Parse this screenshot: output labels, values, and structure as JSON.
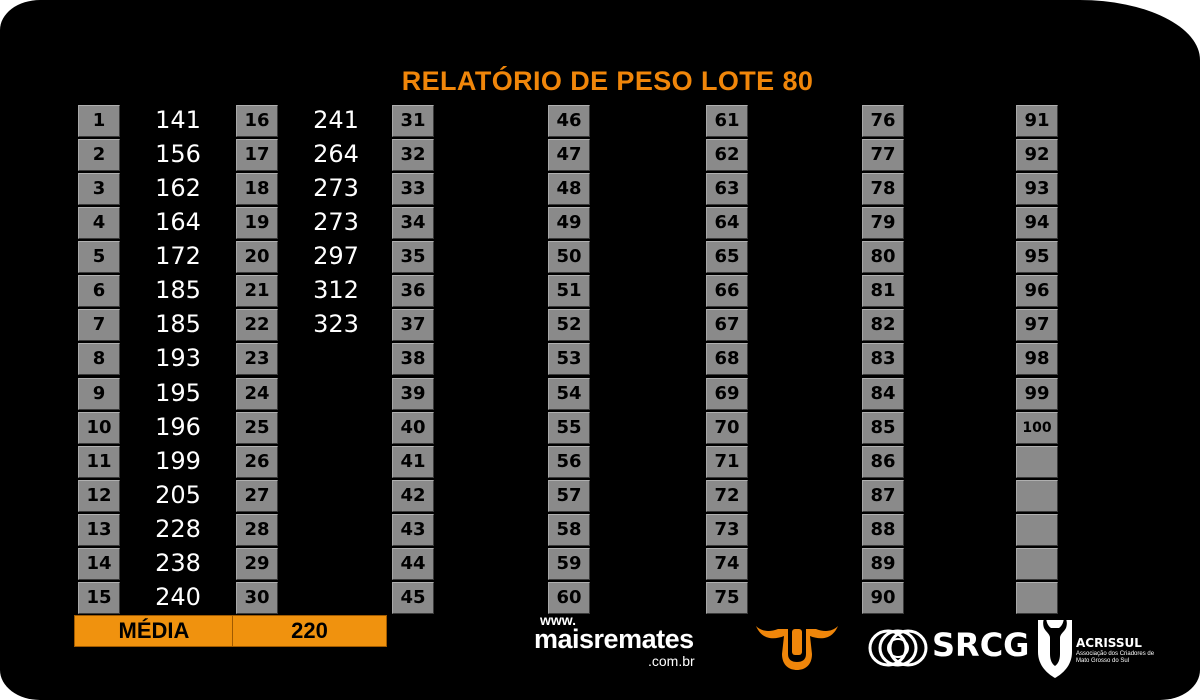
{
  "title": "RELATÓRIO DE PESO LOTE 80",
  "entries": [
    {
      "n": "1",
      "w": "141"
    },
    {
      "n": "2",
      "w": "156"
    },
    {
      "n": "3",
      "w": "162"
    },
    {
      "n": "4",
      "w": "164"
    },
    {
      "n": "5",
      "w": "172"
    },
    {
      "n": "6",
      "w": "185"
    },
    {
      "n": "7",
      "w": "185"
    },
    {
      "n": "8",
      "w": "193"
    },
    {
      "n": "9",
      "w": "195"
    },
    {
      "n": "10",
      "w": "196"
    },
    {
      "n": "11",
      "w": "199"
    },
    {
      "n": "12",
      "w": "205"
    },
    {
      "n": "13",
      "w": "228"
    },
    {
      "n": "14",
      "w": "238"
    },
    {
      "n": "15",
      "w": "240"
    },
    {
      "n": "16",
      "w": "241"
    },
    {
      "n": "17",
      "w": "264"
    },
    {
      "n": "18",
      "w": "273"
    },
    {
      "n": "19",
      "w": "273"
    },
    {
      "n": "20",
      "w": "297"
    },
    {
      "n": "21",
      "w": "312"
    },
    {
      "n": "22",
      "w": "323"
    },
    {
      "n": "23",
      "w": ""
    },
    {
      "n": "24",
      "w": ""
    },
    {
      "n": "25",
      "w": ""
    },
    {
      "n": "26",
      "w": ""
    },
    {
      "n": "27",
      "w": ""
    },
    {
      "n": "28",
      "w": ""
    },
    {
      "n": "29",
      "w": ""
    },
    {
      "n": "30",
      "w": ""
    },
    {
      "n": "31",
      "w": ""
    },
    {
      "n": "32",
      "w": ""
    },
    {
      "n": "33",
      "w": ""
    },
    {
      "n": "34",
      "w": ""
    },
    {
      "n": "35",
      "w": ""
    },
    {
      "n": "36",
      "w": ""
    },
    {
      "n": "37",
      "w": ""
    },
    {
      "n": "38",
      "w": ""
    },
    {
      "n": "39",
      "w": ""
    },
    {
      "n": "40",
      "w": ""
    },
    {
      "n": "41",
      "w": ""
    },
    {
      "n": "42",
      "w": ""
    },
    {
      "n": "43",
      "w": ""
    },
    {
      "n": "44",
      "w": ""
    },
    {
      "n": "45",
      "w": ""
    },
    {
      "n": "46",
      "w": ""
    },
    {
      "n": "47",
      "w": ""
    },
    {
      "n": "48",
      "w": ""
    },
    {
      "n": "49",
      "w": ""
    },
    {
      "n": "50",
      "w": ""
    },
    {
      "n": "51",
      "w": ""
    },
    {
      "n": "52",
      "w": ""
    },
    {
      "n": "53",
      "w": ""
    },
    {
      "n": "54",
      "w": ""
    },
    {
      "n": "55",
      "w": ""
    },
    {
      "n": "56",
      "w": ""
    },
    {
      "n": "57",
      "w": ""
    },
    {
      "n": "58",
      "w": ""
    },
    {
      "n": "59",
      "w": ""
    },
    {
      "n": "60",
      "w": ""
    },
    {
      "n": "61",
      "w": ""
    },
    {
      "n": "62",
      "w": ""
    },
    {
      "n": "63",
      "w": ""
    },
    {
      "n": "64",
      "w": ""
    },
    {
      "n": "65",
      "w": ""
    },
    {
      "n": "66",
      "w": ""
    },
    {
      "n": "67",
      "w": ""
    },
    {
      "n": "68",
      "w": ""
    },
    {
      "n": "69",
      "w": ""
    },
    {
      "n": "70",
      "w": ""
    },
    {
      "n": "71",
      "w": ""
    },
    {
      "n": "72",
      "w": ""
    },
    {
      "n": "73",
      "w": ""
    },
    {
      "n": "74",
      "w": ""
    },
    {
      "n": "75",
      "w": ""
    },
    {
      "n": "76",
      "w": ""
    },
    {
      "n": "77",
      "w": ""
    },
    {
      "n": "78",
      "w": ""
    },
    {
      "n": "79",
      "w": ""
    },
    {
      "n": "80",
      "w": ""
    },
    {
      "n": "81",
      "w": ""
    },
    {
      "n": "82",
      "w": ""
    },
    {
      "n": "83",
      "w": ""
    },
    {
      "n": "84",
      "w": ""
    },
    {
      "n": "85",
      "w": ""
    },
    {
      "n": "86",
      "w": ""
    },
    {
      "n": "87",
      "w": ""
    },
    {
      "n": "88",
      "w": ""
    },
    {
      "n": "89",
      "w": ""
    },
    {
      "n": "90",
      "w": ""
    },
    {
      "n": "91",
      "w": ""
    },
    {
      "n": "92",
      "w": ""
    },
    {
      "n": "93",
      "w": ""
    },
    {
      "n": "94",
      "w": ""
    },
    {
      "n": "95",
      "w": ""
    },
    {
      "n": "96",
      "w": ""
    },
    {
      "n": "97",
      "w": ""
    },
    {
      "n": "98",
      "w": ""
    },
    {
      "n": "99",
      "w": ""
    },
    {
      "n": "100",
      "w": ""
    },
    {
      "n": "",
      "w": ""
    },
    {
      "n": "",
      "w": ""
    },
    {
      "n": "",
      "w": ""
    },
    {
      "n": "",
      "w": ""
    },
    {
      "n": "",
      "w": ""
    }
  ],
  "average": {
    "label": "MÉDIA",
    "value": "220"
  },
  "logos": {
    "maisremates": {
      "www": "www.",
      "brand": "maisremates",
      "domain": ".com.br"
    },
    "bull": {
      "icon": "bull-head-icon"
    },
    "srcg": {
      "text": "SRCG",
      "icon": "srcg-emblem-icon"
    },
    "acrissul": {
      "name": "ACRISSUL",
      "subtitle": "Associação dos Criadores de Mato Grosso do Sul",
      "icon": "bull-shield-icon"
    }
  },
  "colors": {
    "background": "#000000",
    "accent": "#f0860a",
    "number_box": "#8a8a8a",
    "value_text": "#ffffff"
  }
}
